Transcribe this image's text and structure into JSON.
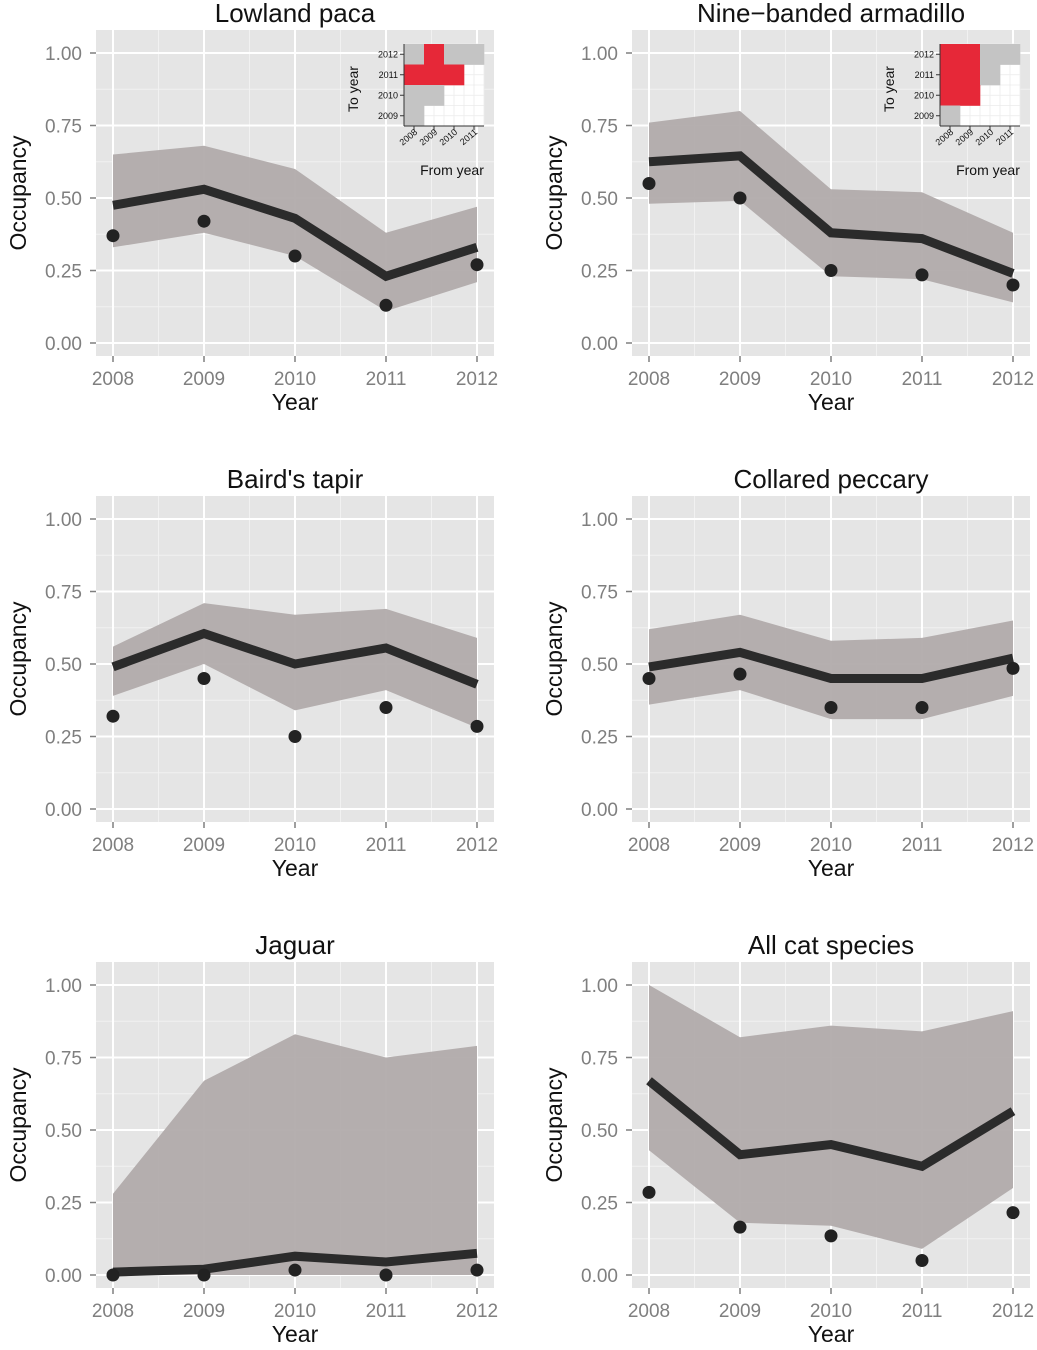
{
  "chart_data": [
    {
      "type": "line",
      "title": "Lowland paca",
      "xlabel": "Year",
      "ylabel": "Occupancy",
      "x": [
        2008,
        2009,
        2010,
        2011,
        2012
      ],
      "ylim": [
        0,
        1
      ],
      "yticks": [
        "0.00",
        "0.25",
        "0.50",
        "0.75",
        "1.00"
      ],
      "xticks": [
        "2008",
        "2009",
        "2010",
        "2011",
        "2012"
      ],
      "series": [
        {
          "kind": "line",
          "values": [
            0.475,
            0.53,
            0.43,
            0.23,
            0.33
          ]
        },
        {
          "kind": "band",
          "lower": [
            0.33,
            0.38,
            0.3,
            0.11,
            0.21
          ],
          "upper": [
            0.65,
            0.68,
            0.6,
            0.38,
            0.47
          ]
        },
        {
          "kind": "points",
          "values": [
            0.37,
            0.42,
            0.3,
            0.13,
            0.27
          ]
        }
      ],
      "colors": {
        "line": "#2b2b2b",
        "band": "#b1abab",
        "panel": "#e5e5e5"
      },
      "grid": true,
      "inset": {
        "xlabel": "From year",
        "ylabel": "To year",
        "xticks": [
          "2008",
          "2009",
          "2010",
          "2011"
        ],
        "yticks": [
          "2009",
          "2010",
          "2011",
          "2012"
        ],
        "cells": [
          {
            "to": "2012",
            "from": "2008",
            "fill": "grey"
          },
          {
            "to": "2012",
            "from": "2009",
            "fill": "red"
          },
          {
            "to": "2012",
            "from": "2010",
            "fill": "grey"
          },
          {
            "to": "2012",
            "from": "2011",
            "fill": "grey"
          },
          {
            "to": "2011",
            "from": "2008",
            "fill": "red"
          },
          {
            "to": "2011",
            "from": "2009",
            "fill": "red"
          },
          {
            "to": "2011",
            "from": "2010",
            "fill": "red"
          },
          {
            "to": "2010",
            "from": "2008",
            "fill": "grey"
          },
          {
            "to": "2010",
            "from": "2009",
            "fill": "grey"
          },
          {
            "to": "2009",
            "from": "2008",
            "fill": "grey"
          }
        ],
        "colors": {
          "red": "#e62838",
          "grey": "#c4c4c4"
        }
      }
    },
    {
      "type": "line",
      "title": "Nine−banded armadillo",
      "xlabel": "Year",
      "ylabel": "Occupancy",
      "x": [
        2008,
        2009,
        2010,
        2011,
        2012
      ],
      "ylim": [
        0,
        1
      ],
      "yticks": [
        "0.00",
        "0.25",
        "0.50",
        "0.75",
        "1.00"
      ],
      "xticks": [
        "2008",
        "2009",
        "2010",
        "2011",
        "2012"
      ],
      "series": [
        {
          "kind": "line",
          "values": [
            0.625,
            0.645,
            0.38,
            0.36,
            0.24
          ]
        },
        {
          "kind": "band",
          "lower": [
            0.48,
            0.49,
            0.23,
            0.22,
            0.14
          ],
          "upper": [
            0.76,
            0.8,
            0.53,
            0.52,
            0.38
          ]
        },
        {
          "kind": "points",
          "values": [
            0.55,
            0.5,
            0.25,
            0.235,
            0.2
          ]
        }
      ],
      "colors": {
        "line": "#2b2b2b",
        "band": "#b1abab",
        "panel": "#e5e5e5"
      },
      "grid": true,
      "inset": {
        "xlabel": "From year",
        "ylabel": "To year",
        "xticks": [
          "2008",
          "2009",
          "2010",
          "2011"
        ],
        "yticks": [
          "2009",
          "2010",
          "2011",
          "2012"
        ],
        "cells": [
          {
            "to": "2012",
            "from": "2008",
            "fill": "red"
          },
          {
            "to": "2012",
            "from": "2009",
            "fill": "red"
          },
          {
            "to": "2012",
            "from": "2010",
            "fill": "grey"
          },
          {
            "to": "2012",
            "from": "2011",
            "fill": "grey"
          },
          {
            "to": "2011",
            "from": "2008",
            "fill": "red"
          },
          {
            "to": "2011",
            "from": "2009",
            "fill": "red"
          },
          {
            "to": "2011",
            "from": "2010",
            "fill": "grey"
          },
          {
            "to": "2010",
            "from": "2008",
            "fill": "red"
          },
          {
            "to": "2010",
            "from": "2009",
            "fill": "red"
          },
          {
            "to": "2009",
            "from": "2008",
            "fill": "grey"
          }
        ],
        "colors": {
          "red": "#e62838",
          "grey": "#c4c4c4"
        }
      }
    },
    {
      "type": "line",
      "title": "Baird's tapir",
      "xlabel": "Year",
      "ylabel": "Occupancy",
      "x": [
        2008,
        2009,
        2010,
        2011,
        2012
      ],
      "ylim": [
        0,
        1
      ],
      "yticks": [
        "0.00",
        "0.25",
        "0.50",
        "0.75",
        "1.00"
      ],
      "xticks": [
        "2008",
        "2009",
        "2010",
        "2011",
        "2012"
      ],
      "series": [
        {
          "kind": "line",
          "values": [
            0.49,
            0.605,
            0.5,
            0.555,
            0.43
          ]
        },
        {
          "kind": "band",
          "lower": [
            0.39,
            0.5,
            0.34,
            0.41,
            0.28
          ],
          "upper": [
            0.56,
            0.71,
            0.67,
            0.69,
            0.59
          ]
        },
        {
          "kind": "points",
          "values": [
            0.32,
            0.45,
            0.25,
            0.35,
            0.285
          ]
        }
      ],
      "colors": {
        "line": "#2b2b2b",
        "band": "#b1abab",
        "panel": "#e5e5e5"
      },
      "grid": true
    },
    {
      "type": "line",
      "title": "Collared peccary",
      "xlabel": "Year",
      "ylabel": "Occupancy",
      "x": [
        2008,
        2009,
        2010,
        2011,
        2012
      ],
      "ylim": [
        0,
        1
      ],
      "yticks": [
        "0.00",
        "0.25",
        "0.50",
        "0.75",
        "1.00"
      ],
      "xticks": [
        "2008",
        "2009",
        "2010",
        "2011",
        "2012"
      ],
      "series": [
        {
          "kind": "line",
          "values": [
            0.49,
            0.54,
            0.45,
            0.45,
            0.52
          ]
        },
        {
          "kind": "band",
          "lower": [
            0.36,
            0.41,
            0.31,
            0.31,
            0.39
          ],
          "upper": [
            0.62,
            0.67,
            0.58,
            0.59,
            0.65
          ]
        },
        {
          "kind": "points",
          "values": [
            0.45,
            0.465,
            0.35,
            0.35,
            0.485
          ]
        }
      ],
      "colors": {
        "line": "#2b2b2b",
        "band": "#b1abab",
        "panel": "#e5e5e5"
      },
      "grid": true
    },
    {
      "type": "line",
      "title": "Jaguar",
      "xlabel": "Year",
      "ylabel": "Occupancy",
      "x": [
        2008,
        2009,
        2010,
        2011,
        2012
      ],
      "ylim": [
        0,
        1
      ],
      "yticks": [
        "0.00",
        "0.25",
        "0.50",
        "0.75",
        "1.00"
      ],
      "xticks": [
        "2008",
        "2009",
        "2010",
        "2011",
        "2012"
      ],
      "series": [
        {
          "kind": "line",
          "values": [
            0.01,
            0.02,
            0.065,
            0.045,
            0.075
          ]
        },
        {
          "kind": "band",
          "lower": [
            0.0,
            0.0,
            0.0,
            0.0,
            0.0
          ],
          "upper": [
            0.28,
            0.67,
            0.83,
            0.75,
            0.79
          ]
        },
        {
          "kind": "points",
          "values": [
            0.0,
            0.0,
            0.017,
            0.0,
            0.017
          ]
        }
      ],
      "colors": {
        "line": "#2b2b2b",
        "band": "#b1abab",
        "panel": "#e5e5e5"
      },
      "grid": true
    },
    {
      "type": "line",
      "title": "All cat species",
      "xlabel": "Year",
      "ylabel": "Occupancy",
      "x": [
        2008,
        2009,
        2010,
        2011,
        2012
      ],
      "ylim": [
        0,
        1
      ],
      "yticks": [
        "0.00",
        "0.25",
        "0.50",
        "0.75",
        "1.00"
      ],
      "xticks": [
        "2008",
        "2009",
        "2010",
        "2011",
        "2012"
      ],
      "series": [
        {
          "kind": "line",
          "values": [
            0.67,
            0.415,
            0.45,
            0.375,
            0.565
          ]
        },
        {
          "kind": "band",
          "lower": [
            0.43,
            0.18,
            0.17,
            0.09,
            0.3
          ],
          "upper": [
            1.0,
            0.82,
            0.86,
            0.84,
            0.91
          ]
        },
        {
          "kind": "points",
          "values": [
            0.285,
            0.165,
            0.135,
            0.05,
            0.215
          ]
        }
      ],
      "colors": {
        "line": "#2b2b2b",
        "band": "#b1abab",
        "panel": "#e5e5e5"
      },
      "grid": true
    }
  ]
}
